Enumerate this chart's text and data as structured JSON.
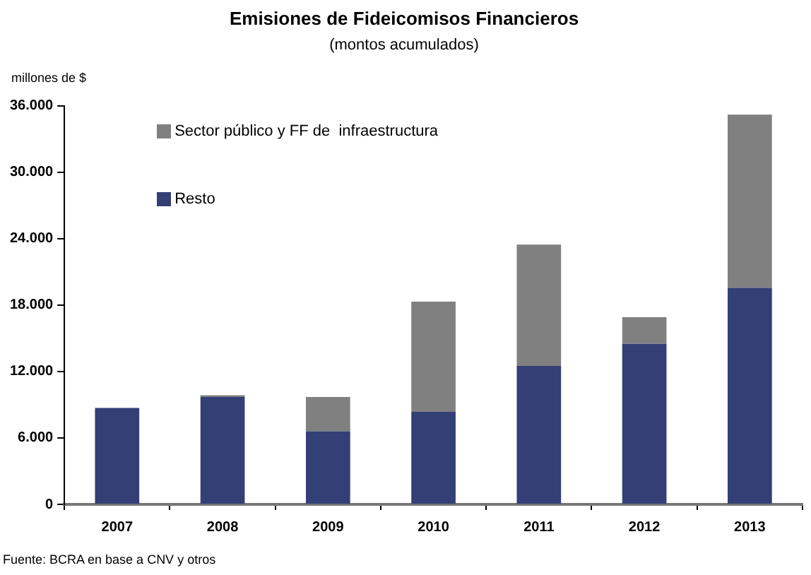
{
  "chart_data": {
    "type": "bar",
    "title": "Emisiones de Fideicomisos Financieros",
    "subtitle": "(montos acumulados)",
    "ylabel": "millones de $",
    "annotations": [
      "Fuente: BCRA en base a CNV  y otros"
    ],
    "categories": [
      "2007",
      "2008",
      "2009",
      "2010",
      "2011",
      "2012",
      "2013"
    ],
    "series": [
      {
        "name": "Resto",
        "color": "#333f75",
        "values": [
          8700,
          9700,
          6600,
          8350,
          12500,
          14500,
          19550
        ]
      },
      {
        "name": "Sector público y FF de  infraestructura",
        "color": "#808080",
        "values": [
          0,
          150,
          3100,
          9950,
          10950,
          2400,
          15650
        ]
      }
    ],
    "stacked": true,
    "ylim": [
      0,
      36000
    ],
    "yticks": [
      {
        "value": 0,
        "label": "0"
      },
      {
        "value": 6000,
        "label": "6.000"
      },
      {
        "value": 12000,
        "label": "12.000"
      },
      {
        "value": 18000,
        "label": "18.000"
      },
      {
        "value": 24000,
        "label": "24.000"
      },
      {
        "value": 30000,
        "label": "30.000"
      },
      {
        "value": 36000,
        "label": "36.000"
      }
    ],
    "grid": false,
    "legend": "top left"
  }
}
